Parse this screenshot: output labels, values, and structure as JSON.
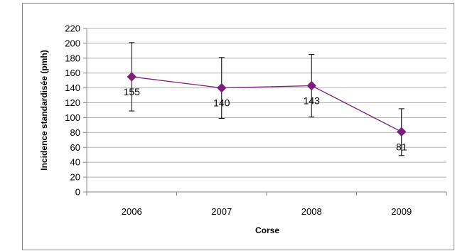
{
  "chart_data": {
    "type": "line",
    "title": "",
    "xlabel": "Corse",
    "ylabel": "Incidence standardisée (pmh)",
    "categories": [
      "2006",
      "2007",
      "2008",
      "2009"
    ],
    "series": [
      {
        "values": [
          155,
          140,
          143,
          81
        ],
        "error_low": [
          109,
          99,
          101,
          49
        ],
        "error_high": [
          201,
          181,
          185,
          112
        ],
        "data_labels": [
          "155",
          "140",
          "143",
          "81"
        ],
        "color": "#7B1F7A",
        "marker": "diamond"
      }
    ],
    "ylim": [
      0,
      220
    ],
    "yticks": [
      "0",
      "20",
      "40",
      "60",
      "80",
      "100",
      "120",
      "140",
      "160",
      "180",
      "200",
      "220"
    ],
    "grid": true,
    "legend": "none"
  }
}
